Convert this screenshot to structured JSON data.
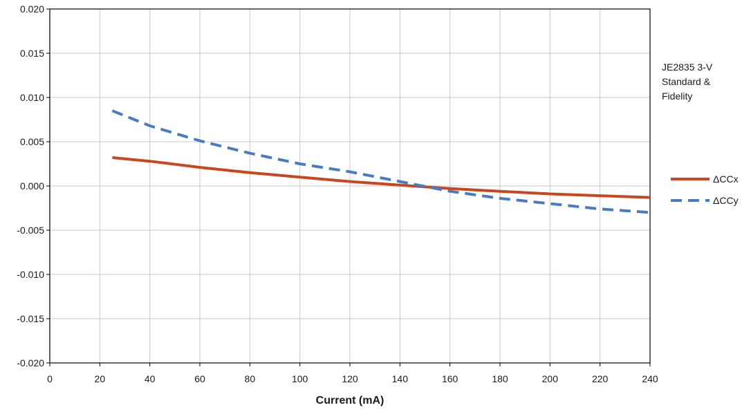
{
  "chart_data": {
    "type": "line",
    "title": "",
    "xlabel": "Current (mA)",
    "ylabel": "",
    "xlim": [
      0,
      240
    ],
    "ylim": [
      -0.02,
      0.02
    ],
    "x_ticks": [
      "0",
      "20",
      "40",
      "60",
      "80",
      "100",
      "120",
      "140",
      "160",
      "180",
      "200",
      "220",
      "240"
    ],
    "y_ticks": [
      "0.020",
      "0.015",
      "0.010",
      "0.005",
      "0.000",
      "-0.005",
      "-0.010",
      "-0.015",
      "-0.020"
    ],
    "grid": true,
    "legend_position": "right",
    "annotation": [
      "JE2835 3-V",
      "Standard  &",
      "Fidelity"
    ],
    "x": [
      25,
      40,
      60,
      80,
      100,
      120,
      140,
      160,
      180,
      200,
      220,
      240
    ],
    "series": [
      {
        "name": "ΔCCx",
        "color": "#c9461e",
        "dash": "solid",
        "values": [
          0.0032,
          0.0028,
          0.0021,
          0.0015,
          0.001,
          0.0005,
          0.0001,
          -0.0003,
          -0.0006,
          -0.0009,
          -0.0011,
          -0.0013
        ]
      },
      {
        "name": "ΔCCy",
        "color": "#4a7bc1",
        "dash": "dashed",
        "values": [
          0.0085,
          0.0068,
          0.0051,
          0.0037,
          0.0025,
          0.0016,
          0.0005,
          -0.0006,
          -0.0014,
          -0.002,
          -0.0026,
          -0.003
        ]
      }
    ]
  }
}
